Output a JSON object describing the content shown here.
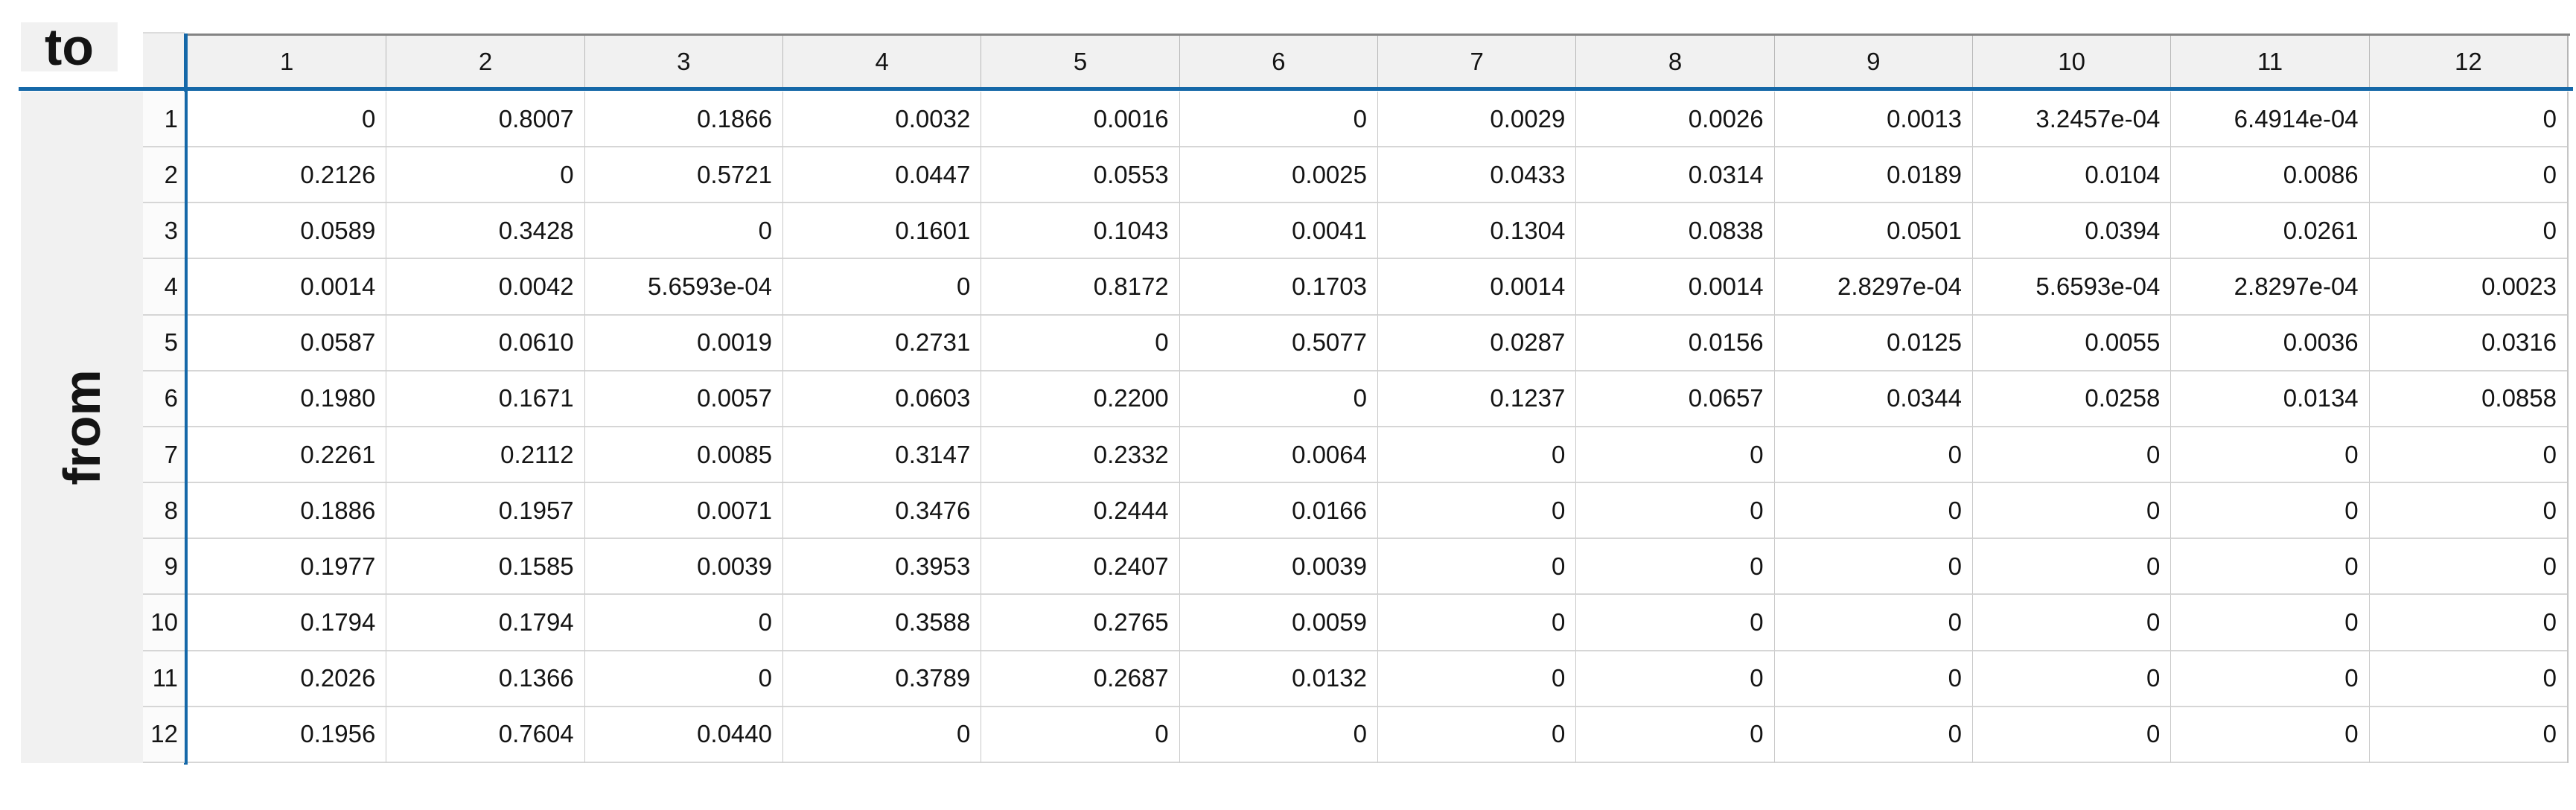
{
  "table": {
    "col_axis_label": "to",
    "row_axis_label": "from",
    "columns": [
      "1",
      "2",
      "3",
      "4",
      "5",
      "6",
      "7",
      "8",
      "9",
      "10",
      "11",
      "12"
    ],
    "rows": [
      "1",
      "2",
      "3",
      "4",
      "5",
      "6",
      "7",
      "8",
      "9",
      "10",
      "11",
      "12"
    ],
    "matrix": [
      [
        "0",
        "0.8007",
        "0.1866",
        "0.0032",
        "0.0016",
        "0",
        "0.0029",
        "0.0026",
        "0.0013",
        "3.2457e-04",
        "6.4914e-04",
        "0"
      ],
      [
        "0.2126",
        "0",
        "0.5721",
        "0.0447",
        "0.0553",
        "0.0025",
        "0.0433",
        "0.0314",
        "0.0189",
        "0.0104",
        "0.0086",
        "0"
      ],
      [
        "0.0589",
        "0.3428",
        "0",
        "0.1601",
        "0.1043",
        "0.0041",
        "0.1304",
        "0.0838",
        "0.0501",
        "0.0394",
        "0.0261",
        "0"
      ],
      [
        "0.0014",
        "0.0042",
        "5.6593e-04",
        "0",
        "0.8172",
        "0.1703",
        "0.0014",
        "0.0014",
        "2.8297e-04",
        "5.6593e-04",
        "2.8297e-04",
        "0.0023"
      ],
      [
        "0.0587",
        "0.0610",
        "0.0019",
        "0.2731",
        "0",
        "0.5077",
        "0.0287",
        "0.0156",
        "0.0125",
        "0.0055",
        "0.0036",
        "0.0316"
      ],
      [
        "0.1980",
        "0.1671",
        "0.0057",
        "0.0603",
        "0.2200",
        "0",
        "0.1237",
        "0.0657",
        "0.0344",
        "0.0258",
        "0.0134",
        "0.0858"
      ],
      [
        "0.2261",
        "0.2112",
        "0.0085",
        "0.3147",
        "0.2332",
        "0.0064",
        "0",
        "0",
        "0",
        "0",
        "0",
        "0"
      ],
      [
        "0.1886",
        "0.1957",
        "0.0071",
        "0.3476",
        "0.2444",
        "0.0166",
        "0",
        "0",
        "0",
        "0",
        "0",
        "0"
      ],
      [
        "0.1977",
        "0.1585",
        "0.0039",
        "0.3953",
        "0.2407",
        "0.0039",
        "0",
        "0",
        "0",
        "0",
        "0",
        "0"
      ],
      [
        "0.1794",
        "0.1794",
        "0",
        "0.3588",
        "0.2765",
        "0.0059",
        "0",
        "0",
        "0",
        "0",
        "0",
        "0"
      ],
      [
        "0.2026",
        "0.1366",
        "0",
        "0.3789",
        "0.2687",
        "0.0132",
        "0",
        "0",
        "0",
        "0",
        "0",
        "0"
      ],
      [
        "0.1956",
        "0.7604",
        "0.0440",
        "0",
        "0",
        "0",
        "0",
        "0",
        "0",
        "0",
        "0",
        "0"
      ]
    ]
  },
  "colors": {
    "accent_blue": "#1568a8",
    "header_bg": "#f1f1f1",
    "left_band_bg": "#f1f1f1",
    "top_border_gray": "#848484",
    "grid_line_gray": "#c9c9c9",
    "row_line_gray": "#d6d6d6",
    "text": "#141414"
  }
}
